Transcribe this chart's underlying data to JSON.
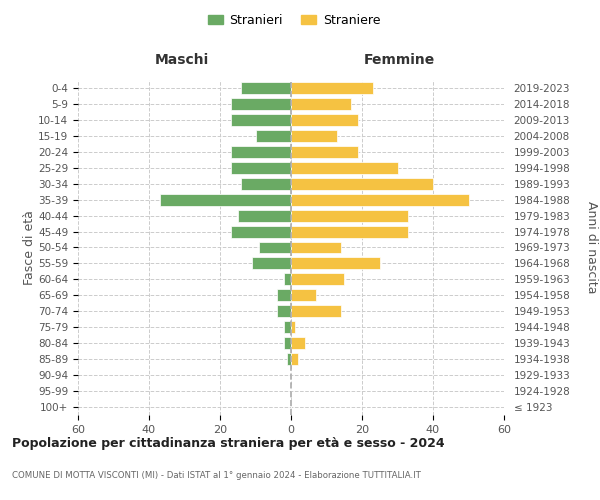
{
  "age_groups": [
    "100+",
    "95-99",
    "90-94",
    "85-89",
    "80-84",
    "75-79",
    "70-74",
    "65-69",
    "60-64",
    "55-59",
    "50-54",
    "45-49",
    "40-44",
    "35-39",
    "30-34",
    "25-29",
    "20-24",
    "15-19",
    "10-14",
    "5-9",
    "0-4"
  ],
  "birth_years": [
    "≤ 1923",
    "1924-1928",
    "1929-1933",
    "1934-1938",
    "1939-1943",
    "1944-1948",
    "1949-1953",
    "1954-1958",
    "1959-1963",
    "1964-1968",
    "1969-1973",
    "1974-1978",
    "1979-1983",
    "1984-1988",
    "1989-1993",
    "1994-1998",
    "1999-2003",
    "2004-2008",
    "2009-2013",
    "2014-2018",
    "2019-2023"
  ],
  "males": [
    0,
    0,
    0,
    1,
    2,
    2,
    4,
    4,
    2,
    11,
    9,
    17,
    15,
    37,
    14,
    17,
    17,
    10,
    17,
    17,
    14
  ],
  "females": [
    0,
    0,
    0,
    2,
    4,
    1,
    14,
    7,
    15,
    25,
    14,
    33,
    33,
    50,
    40,
    30,
    19,
    13,
    19,
    17,
    23
  ],
  "male_color": "#6aaa64",
  "female_color": "#f5c242",
  "background_color": "#ffffff",
  "grid_color": "#cccccc",
  "title": "Popolazione per cittadinanza straniera per età e sesso - 2024",
  "subtitle": "COMUNE DI MOTTA VISCONTI (MI) - Dati ISTAT al 1° gennaio 2024 - Elaborazione TUTTITALIA.IT",
  "xlabel_left": "Maschi",
  "xlabel_right": "Femmine",
  "ylabel_left": "Fasce di età",
  "ylabel_right": "Anni di nascita",
  "legend_stranieri": "Stranieri",
  "legend_straniere": "Straniere",
  "xlim": 60
}
